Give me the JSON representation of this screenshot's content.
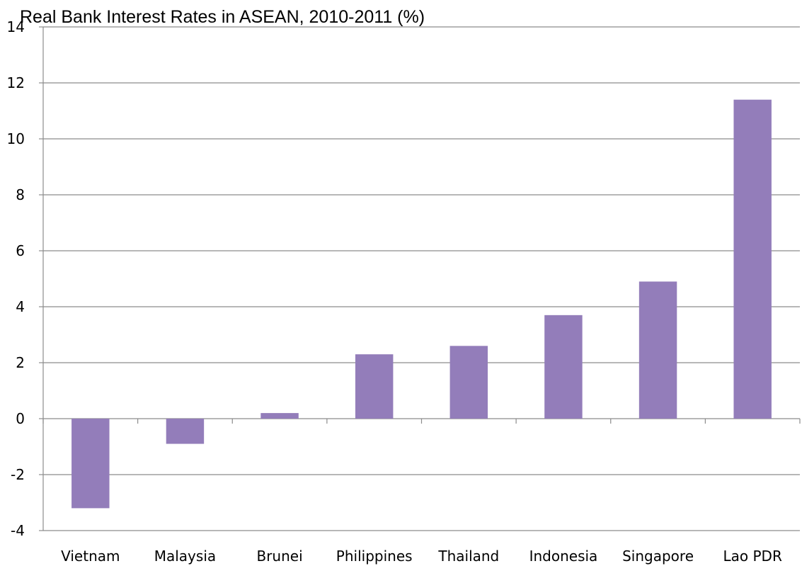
{
  "chart_data": {
    "type": "bar",
    "title": "Real Bank Interest Rates in ASEAN, 2010-2011 (%)",
    "xlabel": "",
    "ylabel": "",
    "categories": [
      "Vietnam",
      "Malaysia",
      "Brunei",
      "Philippines",
      "Thailand",
      "Indonesia",
      "Singapore",
      "Lao PDR"
    ],
    "values": [
      -3.2,
      -0.9,
      0.2,
      2.3,
      2.6,
      3.7,
      4.9,
      11.4
    ],
    "ylim": [
      -4,
      14
    ],
    "yticks": [
      -4,
      -2,
      0,
      2,
      4,
      6,
      8,
      10,
      12,
      14
    ],
    "grid": true,
    "legend": "none",
    "bar_color": "#937dba"
  }
}
